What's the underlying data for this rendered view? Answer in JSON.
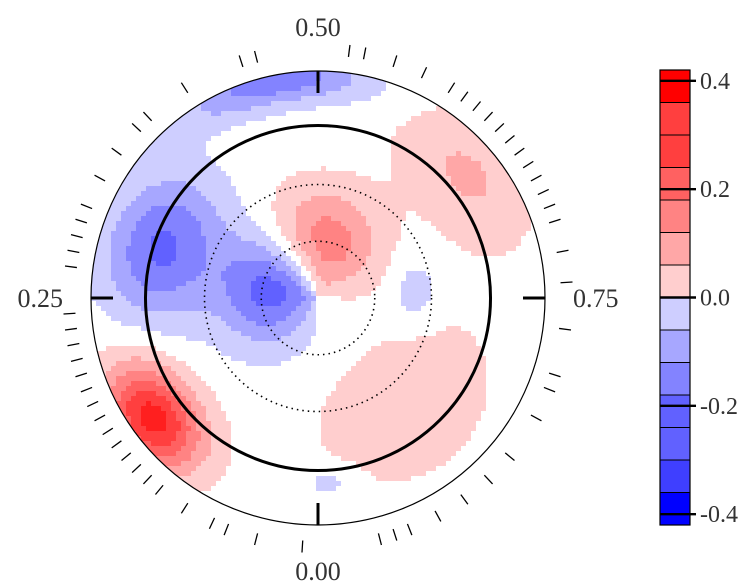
{
  "chart_data": {
    "type": "heatmap",
    "projection": "polar",
    "title": "",
    "angle_labels": [
      "0.00",
      "0.25",
      "0.50",
      "0.75"
    ],
    "colorbar": {
      "min": -0.42,
      "max": 0.42,
      "step": 0.06,
      "tick_values": [
        0.4,
        0.2,
        0.0,
        -0.2,
        -0.4
      ],
      "tick_labels": [
        "0.4",
        "0.2",
        "0.0",
        "-0.2",
        "-0.4"
      ],
      "neutral_band": [
        -0.03,
        0.03
      ]
    },
    "colors": {
      "positive": "#ff0000",
      "negative": "#0000ff",
      "neutral": "#ffffff",
      "outline": "#000000"
    },
    "radial_rings": {
      "solid": [
        0.76
      ],
      "dotted": [
        0.25,
        0.5
      ]
    },
    "components": [
      {
        "name": "red-lobe",
        "amplitude": 0.36,
        "phase": 0.47,
        "radius": 0.22,
        "angular_width": 0.09,
        "radial_width": 0.17
      },
      {
        "name": "blue-lobe",
        "amplitude": -0.38,
        "phase": 0.34,
        "radius": 0.2,
        "angular_width": 0.1,
        "radial_width": 0.17
      },
      {
        "name": "blue-arm",
        "amplitude": -0.22,
        "phase": 0.3,
        "radius": 0.72,
        "angular_width": 0.05,
        "radial_width": 0.17
      },
      {
        "name": "blue-rim-top",
        "amplitude": -0.2,
        "phase": 0.47,
        "radius": 0.98,
        "angular_width": 0.05,
        "radial_width": 0.08
      },
      {
        "name": "red-rim-lower",
        "amplitude": 0.36,
        "phase": 0.15,
        "radius": 0.9,
        "angular_width": 0.035,
        "radial_width": 0.13
      },
      {
        "name": "pink-right",
        "amplitude": 0.1,
        "phase": 0.64,
        "radius": 0.85,
        "angular_width": 0.05,
        "radial_width": 0.16
      },
      {
        "name": "pink-lower-right",
        "amplitude": 0.09,
        "phase": 0.89,
        "radius": 0.62,
        "angular_width": 0.07,
        "radial_width": 0.2
      },
      {
        "name": "lavender-right",
        "amplitude": -0.07,
        "phase": 0.74,
        "radius": 0.43,
        "angular_width": 0.035,
        "radial_width": 0.08
      },
      {
        "name": "lavender-bottom",
        "amplitude": -0.06,
        "phase": 0.99,
        "radius": 0.81,
        "angular_width": 0.018,
        "radial_width": 0.05
      }
    ],
    "rug_ticks": [
      0.01,
      0.04,
      0.06,
      0.07,
      0.09,
      0.11,
      0.12,
      0.13,
      0.14,
      0.15,
      0.16,
      0.17,
      0.18,
      0.19,
      0.2,
      0.21,
      0.22,
      0.23,
      0.24,
      0.27,
      0.28,
      0.29,
      0.3,
      0.31,
      0.33,
      0.35,
      0.37,
      0.38,
      0.41,
      0.45,
      0.46,
      0.52,
      0.53,
      0.55,
      0.57,
      0.59,
      0.6,
      0.61,
      0.62,
      0.63,
      0.64,
      0.65,
      0.66,
      0.67,
      0.68,
      0.69,
      0.7,
      0.72,
      0.74,
      0.77,
      0.8,
      0.81,
      0.83,
      0.86,
      0.88,
      0.9,
      0.92,
      0.94,
      0.95,
      0.96
    ]
  }
}
